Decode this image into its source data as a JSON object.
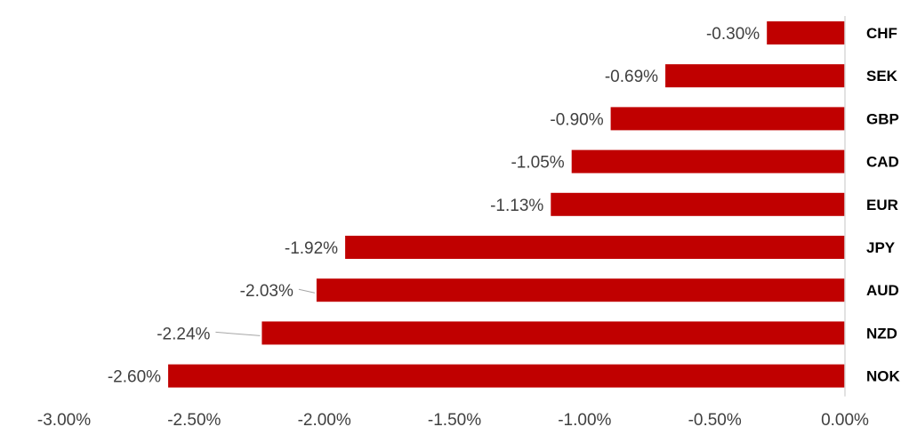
{
  "chart_data": {
    "type": "bar",
    "orientation": "horizontal",
    "categories": [
      "CHF",
      "SEK",
      "GBP",
      "CAD",
      "EUR",
      "JPY",
      "AUD",
      "NZD",
      "NOK"
    ],
    "values": [
      -0.3,
      -0.69,
      -0.9,
      -1.05,
      -1.13,
      -1.92,
      -2.03,
      -2.24,
      -2.6
    ],
    "value_labels": [
      "-0.30%",
      "-0.69%",
      "-0.90%",
      "-1.05%",
      "-1.13%",
      "-1.92%",
      "-2.03%",
      "-2.24%",
      "-2.60%"
    ],
    "x_ticks": [
      -3.0,
      -2.5,
      -2.0,
      -1.5,
      -1.0,
      -0.5,
      0.0
    ],
    "x_tick_labels": [
      "-3.00%",
      "-2.50%",
      "-2.00%",
      "-1.50%",
      "-1.00%",
      "-0.50%",
      "0.00%"
    ],
    "xlim": [
      -3.0,
      0.0
    ],
    "title": "",
    "xlabel": "",
    "ylabel": "",
    "grid": false,
    "legend": "none",
    "category_label_position": "right",
    "bar_color": "#c00000",
    "label_color": "#404040",
    "axis_color": "#d9d9d9"
  }
}
